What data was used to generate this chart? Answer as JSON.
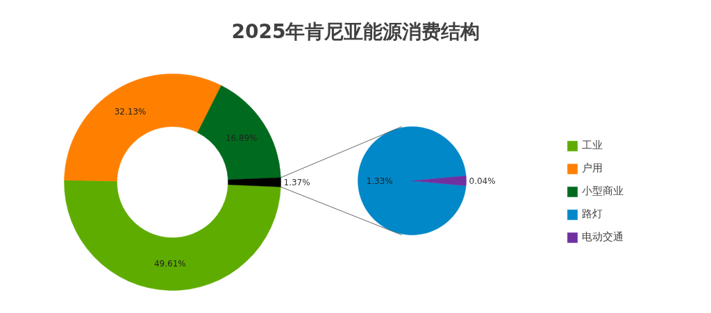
{
  "chart_data": [
    {
      "type": "donut",
      "title": "2025年肯尼亚能源消费结构",
      "categories": [
        "工业",
        "户用",
        "小型商业",
        null
      ],
      "values": [
        49.61,
        32.13,
        16.89,
        1.37
      ],
      "colors": [
        "#5eac00",
        "#ff8000",
        "#006b1e",
        "#000000"
      ],
      "value_labels": [
        "49.61%",
        "32.13%",
        "16.89%",
        "1.37%"
      ],
      "legend": "right"
    },
    {
      "type": "pie",
      "categories": [
        "路灯",
        "电动交通"
      ],
      "values": [
        1.33,
        0.04
      ],
      "colors": [
        "#0088c8",
        "#7030a0"
      ],
      "value_labels": [
        "1.33%",
        "0.04%"
      ],
      "legend": "right"
    }
  ]
}
